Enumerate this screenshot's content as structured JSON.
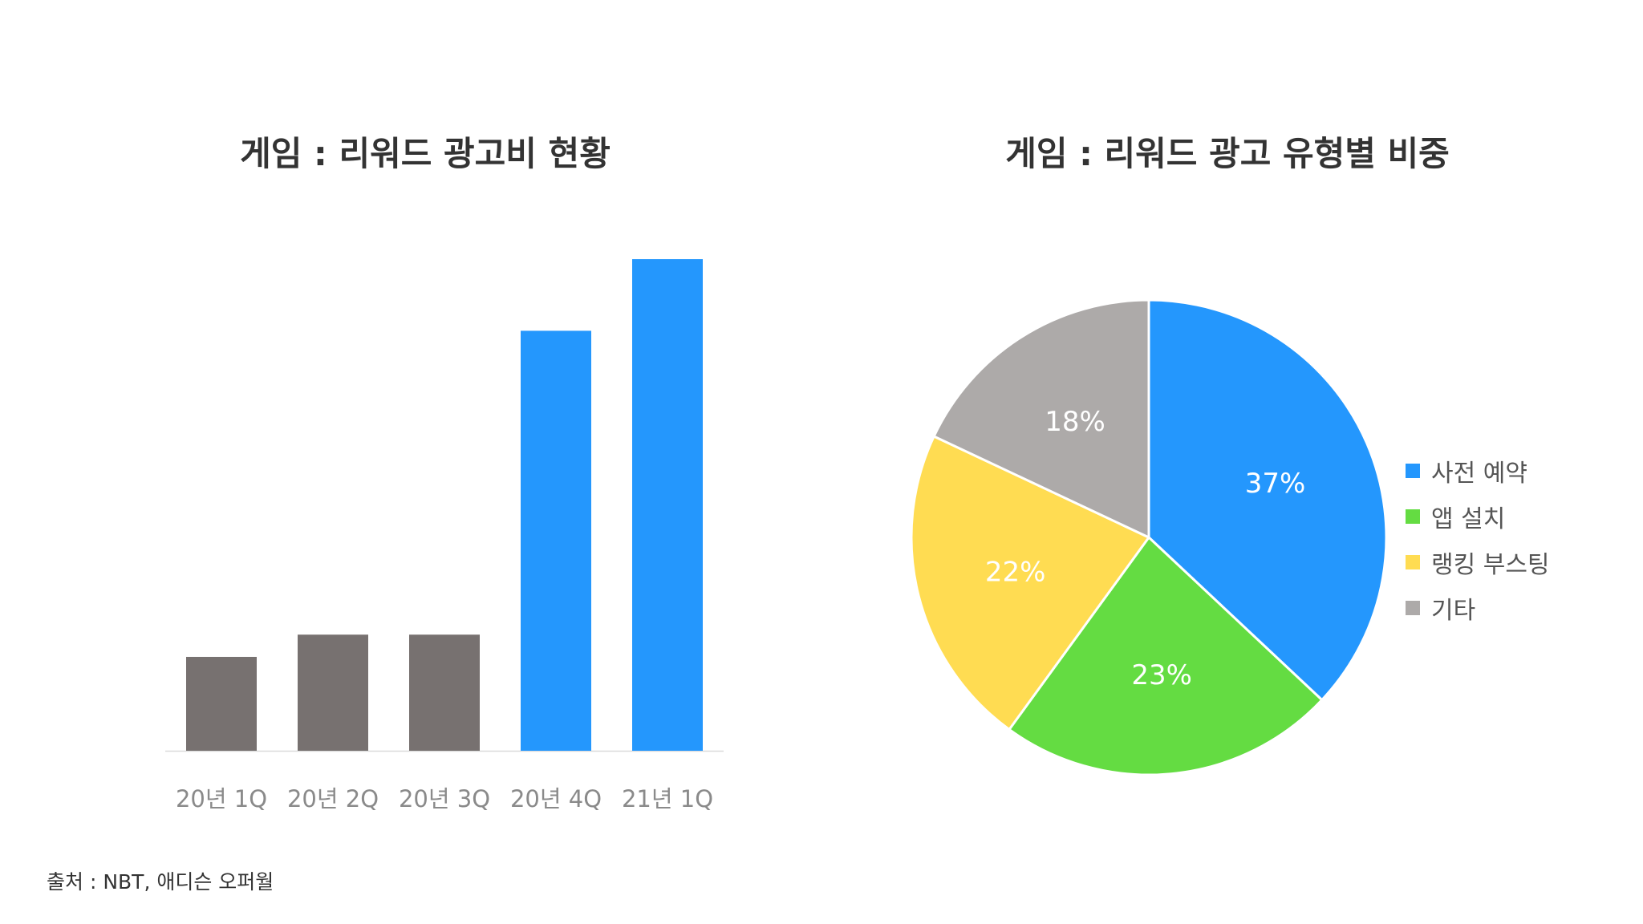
{
  "charts": {
    "bar": {
      "title": "게임 : 리워드 광고비 현황"
    },
    "pie": {
      "title": "게임 : 리워드 광고 유형별 비중"
    }
  },
  "source": "출처 : NBT, 애디슨 오퍼월",
  "chart_data": [
    {
      "type": "bar",
      "title": "게임 : 리워드 광고비 현황",
      "categories": [
        "20년 1Q",
        "20년 2Q",
        "20년 3Q",
        "20년 4Q",
        "21년 1Q"
      ],
      "values": [
        19,
        23.5,
        23.5,
        85,
        99.5
      ],
      "ylim": [
        0,
        100
      ],
      "colors": [
        "#777170",
        "#777170",
        "#777170",
        "#2497fd",
        "#2497fd"
      ],
      "grid": false,
      "y_axis_visible": false
    },
    {
      "type": "pie",
      "title": "게임 : 리워드 광고 유형별 비중",
      "slices": [
        {
          "label": "사전 예약",
          "value": 37,
          "display": "37%",
          "color": "#2497fd"
        },
        {
          "label": "앱 설치",
          "value": 23,
          "display": "23%",
          "color": "#64dc42"
        },
        {
          "label": "랭킹 부스팅",
          "value": 22,
          "display": "22%",
          "color": "#ffdc52"
        },
        {
          "label": "기타",
          "value": 18,
          "display": "18%",
          "color": "#adaaa9"
        }
      ],
      "start_angle_deg": 0,
      "direction": "clockwise",
      "legend_position": "right"
    }
  ]
}
